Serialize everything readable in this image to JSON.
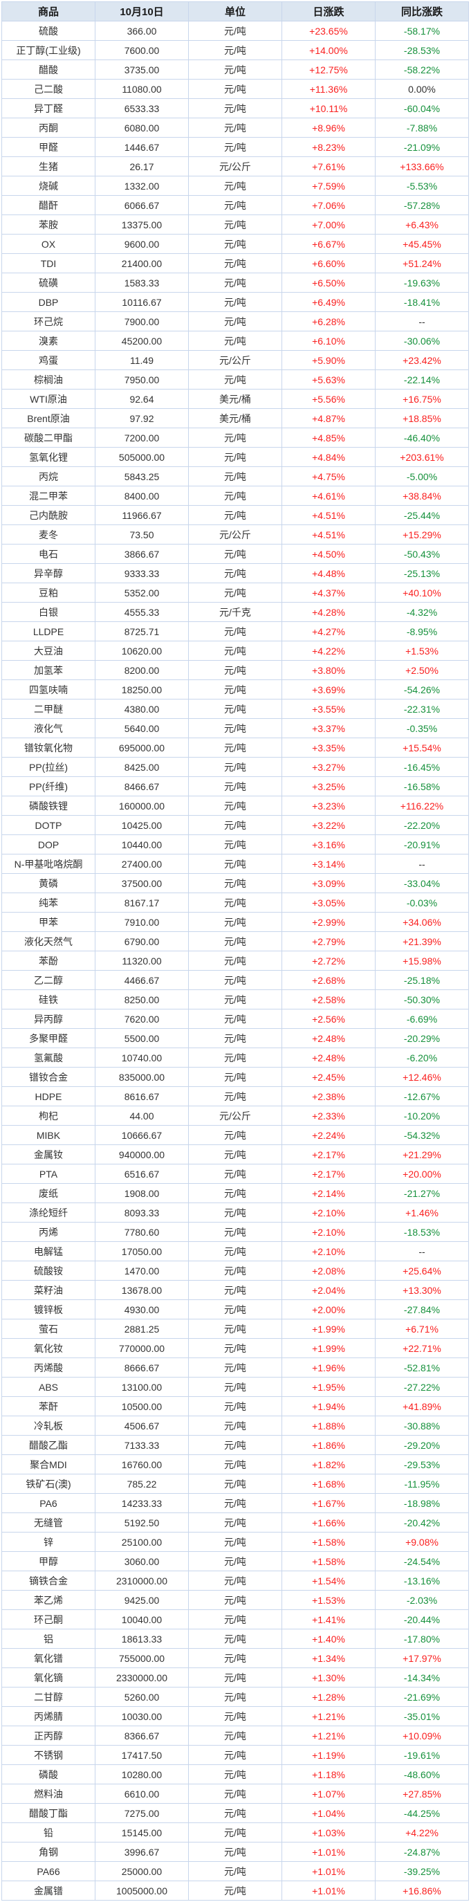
{
  "chart_data": {
    "type": "table",
    "columns": [
      "商品",
      "10月10日",
      "单位",
      "日涨跌",
      "同比涨跌"
    ],
    "rows": [
      [
        "硫酸",
        "366.00",
        "元/吨",
        "+23.65%",
        "-58.17%"
      ],
      [
        "正丁醇(工业级)",
        "7600.00",
        "元/吨",
        "+14.00%",
        "-28.53%"
      ],
      [
        "醋酸",
        "3735.00",
        "元/吨",
        "+12.75%",
        "-58.22%"
      ],
      [
        "己二酸",
        "11080.00",
        "元/吨",
        "+11.36%",
        "0.00%"
      ],
      [
        "异丁醛",
        "6533.33",
        "元/吨",
        "+10.11%",
        "-60.04%"
      ],
      [
        "丙酮",
        "6080.00",
        "元/吨",
        "+8.96%",
        "-7.88%"
      ],
      [
        "甲醛",
        "1446.67",
        "元/吨",
        "+8.23%",
        "-21.09%"
      ],
      [
        "生猪",
        "26.17",
        "元/公斤",
        "+7.61%",
        "+133.66%"
      ],
      [
        "烧碱",
        "1332.00",
        "元/吨",
        "+7.59%",
        "-5.53%"
      ],
      [
        "醋酐",
        "6066.67",
        "元/吨",
        "+7.06%",
        "-57.28%"
      ],
      [
        "苯胺",
        "13375.00",
        "元/吨",
        "+7.00%",
        "+6.43%"
      ],
      [
        "OX",
        "9600.00",
        "元/吨",
        "+6.67%",
        "+45.45%"
      ],
      [
        "TDI",
        "21400.00",
        "元/吨",
        "+6.60%",
        "+51.24%"
      ],
      [
        "硫磺",
        "1583.33",
        "元/吨",
        "+6.50%",
        "-19.63%"
      ],
      [
        "DBP",
        "10116.67",
        "元/吨",
        "+6.49%",
        "-18.41%"
      ],
      [
        "环己烷",
        "7900.00",
        "元/吨",
        "+6.28%",
        "--"
      ],
      [
        "溴素",
        "45200.00",
        "元/吨",
        "+6.10%",
        "-30.06%"
      ],
      [
        "鸡蛋",
        "11.49",
        "元/公斤",
        "+5.90%",
        "+23.42%"
      ],
      [
        "棕榈油",
        "7950.00",
        "元/吨",
        "+5.63%",
        "-22.14%"
      ],
      [
        "WTI原油",
        "92.64",
        "美元/桶",
        "+5.56%",
        "+16.75%"
      ],
      [
        "Brent原油",
        "97.92",
        "美元/桶",
        "+4.87%",
        "+18.85%"
      ],
      [
        "碳酸二甲酯",
        "7200.00",
        "元/吨",
        "+4.85%",
        "-46.40%"
      ],
      [
        "氢氧化锂",
        "505000.00",
        "元/吨",
        "+4.84%",
        "+203.61%"
      ],
      [
        "丙烷",
        "5843.25",
        "元/吨",
        "+4.75%",
        "-5.00%"
      ],
      [
        "混二甲苯",
        "8400.00",
        "元/吨",
        "+4.61%",
        "+38.84%"
      ],
      [
        "己内酰胺",
        "11966.67",
        "元/吨",
        "+4.51%",
        "-25.44%"
      ],
      [
        "麦冬",
        "73.50",
        "元/公斤",
        "+4.51%",
        "+15.29%"
      ],
      [
        "电石",
        "3866.67",
        "元/吨",
        "+4.50%",
        "-50.43%"
      ],
      [
        "异辛醇",
        "9333.33",
        "元/吨",
        "+4.48%",
        "-25.13%"
      ],
      [
        "豆粕",
        "5352.00",
        "元/吨",
        "+4.37%",
        "+40.10%"
      ],
      [
        "白银",
        "4555.33",
        "元/千克",
        "+4.28%",
        "-4.32%"
      ],
      [
        "LLDPE",
        "8725.71",
        "元/吨",
        "+4.27%",
        "-8.95%"
      ],
      [
        "大豆油",
        "10620.00",
        "元/吨",
        "+4.22%",
        "+1.53%"
      ],
      [
        "加氢苯",
        "8200.00",
        "元/吨",
        "+3.80%",
        "+2.50%"
      ],
      [
        "四氢呋喃",
        "18250.00",
        "元/吨",
        "+3.69%",
        "-54.26%"
      ],
      [
        "二甲醚",
        "4380.00",
        "元/吨",
        "+3.55%",
        "-22.31%"
      ],
      [
        "液化气",
        "5640.00",
        "元/吨",
        "+3.37%",
        "-0.35%"
      ],
      [
        "镨钕氧化物",
        "695000.00",
        "元/吨",
        "+3.35%",
        "+15.54%"
      ],
      [
        "PP(拉丝)",
        "8425.00",
        "元/吨",
        "+3.27%",
        "-16.45%"
      ],
      [
        "PP(纤维)",
        "8466.67",
        "元/吨",
        "+3.25%",
        "-16.58%"
      ],
      [
        "磷酸铁锂",
        "160000.00",
        "元/吨",
        "+3.23%",
        "+116.22%"
      ],
      [
        "DOTP",
        "10425.00",
        "元/吨",
        "+3.22%",
        "-22.20%"
      ],
      [
        "DOP",
        "10440.00",
        "元/吨",
        "+3.16%",
        "-20.91%"
      ],
      [
        "N-甲基吡咯烷酮",
        "27400.00",
        "元/吨",
        "+3.14%",
        "--"
      ],
      [
        "黄磷",
        "37500.00",
        "元/吨",
        "+3.09%",
        "-33.04%"
      ],
      [
        "纯苯",
        "8167.17",
        "元/吨",
        "+3.05%",
        "-0.03%"
      ],
      [
        "甲苯",
        "7910.00",
        "元/吨",
        "+2.99%",
        "+34.06%"
      ],
      [
        "液化天然气",
        "6790.00",
        "元/吨",
        "+2.79%",
        "+21.39%"
      ],
      [
        "苯酚",
        "11320.00",
        "元/吨",
        "+2.72%",
        "+15.98%"
      ],
      [
        "乙二醇",
        "4466.67",
        "元/吨",
        "+2.68%",
        "-25.18%"
      ],
      [
        "硅铁",
        "8250.00",
        "元/吨",
        "+2.58%",
        "-50.30%"
      ],
      [
        "异丙醇",
        "7620.00",
        "元/吨",
        "+2.56%",
        "-6.69%"
      ],
      [
        "多聚甲醛",
        "5500.00",
        "元/吨",
        "+2.48%",
        "-20.29%"
      ],
      [
        "氢氟酸",
        "10740.00",
        "元/吨",
        "+2.48%",
        "-6.20%"
      ],
      [
        "镨钕合金",
        "835000.00",
        "元/吨",
        "+2.45%",
        "+12.46%"
      ],
      [
        "HDPE",
        "8616.67",
        "元/吨",
        "+2.38%",
        "-12.67%"
      ],
      [
        "枸杞",
        "44.00",
        "元/公斤",
        "+2.33%",
        "-10.20%"
      ],
      [
        "MIBK",
        "10666.67",
        "元/吨",
        "+2.24%",
        "-54.32%"
      ],
      [
        "金属钕",
        "940000.00",
        "元/吨",
        "+2.17%",
        "+21.29%"
      ],
      [
        "PTA",
        "6516.67",
        "元/吨",
        "+2.17%",
        "+20.00%"
      ],
      [
        "废纸",
        "1908.00",
        "元/吨",
        "+2.14%",
        "-21.27%"
      ],
      [
        "涤纶短纤",
        "8093.33",
        "元/吨",
        "+2.10%",
        "+1.46%"
      ],
      [
        "丙烯",
        "7780.60",
        "元/吨",
        "+2.10%",
        "-18.53%"
      ],
      [
        "电解锰",
        "17050.00",
        "元/吨",
        "+2.10%",
        "--"
      ],
      [
        "硫酸铵",
        "1470.00",
        "元/吨",
        "+2.08%",
        "+25.64%"
      ],
      [
        "菜籽油",
        "13678.00",
        "元/吨",
        "+2.04%",
        "+13.30%"
      ],
      [
        "镀锌板",
        "4930.00",
        "元/吨",
        "+2.00%",
        "-27.84%"
      ],
      [
        "萤石",
        "2881.25",
        "元/吨",
        "+1.99%",
        "+6.71%"
      ],
      [
        "氧化钕",
        "770000.00",
        "元/吨",
        "+1.99%",
        "+22.71%"
      ],
      [
        "丙烯酸",
        "8666.67",
        "元/吨",
        "+1.96%",
        "-52.81%"
      ],
      [
        "ABS",
        "13100.00",
        "元/吨",
        "+1.95%",
        "-27.22%"
      ],
      [
        "苯酐",
        "10500.00",
        "元/吨",
        "+1.94%",
        "+41.89%"
      ],
      [
        "冷轧板",
        "4506.67",
        "元/吨",
        "+1.88%",
        "-30.88%"
      ],
      [
        "醋酸乙酯",
        "7133.33",
        "元/吨",
        "+1.86%",
        "-29.20%"
      ],
      [
        "聚合MDI",
        "16760.00",
        "元/吨",
        "+1.82%",
        "-29.53%"
      ],
      [
        "铁矿石(澳)",
        "785.22",
        "元/吨",
        "+1.68%",
        "-11.95%"
      ],
      [
        "PA6",
        "14233.33",
        "元/吨",
        "+1.67%",
        "-18.98%"
      ],
      [
        "无缝管",
        "5192.50",
        "元/吨",
        "+1.66%",
        "-20.42%"
      ],
      [
        "锌",
        "25100.00",
        "元/吨",
        "+1.58%",
        "+9.08%"
      ],
      [
        "甲醇",
        "3060.00",
        "元/吨",
        "+1.58%",
        "-24.54%"
      ],
      [
        "镝铁合金",
        "2310000.00",
        "元/吨",
        "+1.54%",
        "-13.16%"
      ],
      [
        "苯乙烯",
        "9425.00",
        "元/吨",
        "+1.53%",
        "-2.03%"
      ],
      [
        "环己酮",
        "10040.00",
        "元/吨",
        "+1.41%",
        "-20.44%"
      ],
      [
        "铝",
        "18613.33",
        "元/吨",
        "+1.40%",
        "-17.80%"
      ],
      [
        "氧化镨",
        "755000.00",
        "元/吨",
        "+1.34%",
        "+17.97%"
      ],
      [
        "氧化镝",
        "2330000.00",
        "元/吨",
        "+1.30%",
        "-14.34%"
      ],
      [
        "二甘醇",
        "5260.00",
        "元/吨",
        "+1.28%",
        "-21.69%"
      ],
      [
        "丙烯腈",
        "10030.00",
        "元/吨",
        "+1.21%",
        "-35.01%"
      ],
      [
        "正丙醇",
        "8366.67",
        "元/吨",
        "+1.21%",
        "+10.09%"
      ],
      [
        "不锈钢",
        "17417.50",
        "元/吨",
        "+1.19%",
        "-19.61%"
      ],
      [
        "磷酸",
        "10280.00",
        "元/吨",
        "+1.18%",
        "-48.60%"
      ],
      [
        "燃料油",
        "6610.00",
        "元/吨",
        "+1.07%",
        "+27.85%"
      ],
      [
        "醋酸丁酯",
        "7275.00",
        "元/吨",
        "+1.04%",
        "-44.25%"
      ],
      [
        "铅",
        "15145.00",
        "元/吨",
        "+1.03%",
        "+4.22%"
      ],
      [
        "角钢",
        "3996.67",
        "元/吨",
        "+1.01%",
        "-24.87%"
      ],
      [
        "PA66",
        "25000.00",
        "元/吨",
        "+1.01%",
        "-39.25%"
      ],
      [
        "金属镨",
        "1005000.00",
        "元/吨",
        "+1.01%",
        "+16.86%"
      ]
    ]
  },
  "colors": {
    "up": "#fa2020",
    "down": "#16913c",
    "neutral": "#333333",
    "header_bg": "#dce6f1",
    "border": "#c8d6ec"
  }
}
